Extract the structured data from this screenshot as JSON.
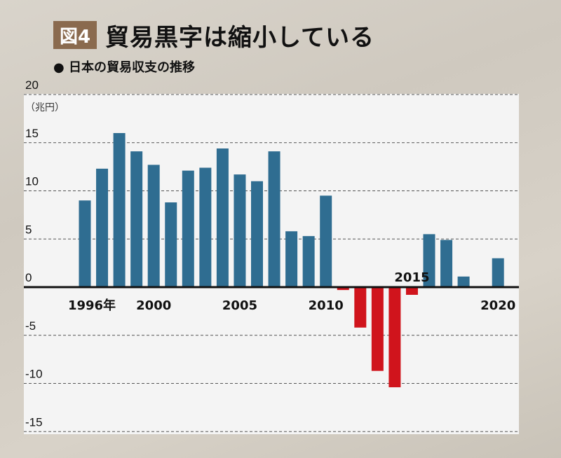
{
  "header": {
    "badge": "図4",
    "title": "貿易黒字は縮小している",
    "subtitle": "● 日本の貿易収支の推移"
  },
  "chart_data": {
    "type": "bar",
    "ylabel": "（兆円）",
    "ylim": [
      -15,
      20
    ],
    "yticks": [
      20,
      15,
      10,
      5,
      0,
      -5,
      -10,
      -15
    ],
    "grid": true,
    "x_tick_labels": [
      {
        "year": 1996,
        "label": "1996年"
      },
      {
        "year": 2000,
        "label": "2000"
      },
      {
        "year": 2005,
        "label": "2005"
      },
      {
        "year": 2010,
        "label": "2010"
      },
      {
        "year": 2015,
        "label": "2015"
      },
      {
        "year": 2020,
        "label": "2020"
      }
    ],
    "x": [
      1996,
      1997,
      1998,
      1999,
      2000,
      2001,
      2002,
      2003,
      2004,
      2005,
      2006,
      2007,
      2008,
      2009,
      2010,
      2011,
      2012,
      2013,
      2014,
      2015,
      2016,
      2017,
      2018,
      2019,
      2020
    ],
    "values": [
      9.0,
      12.3,
      16.0,
      14.1,
      12.7,
      8.8,
      12.1,
      12.4,
      14.4,
      11.7,
      11.0,
      14.1,
      5.8,
      5.3,
      9.5,
      -0.3,
      -4.2,
      -8.7,
      -10.4,
      -0.8,
      5.5,
      4.9,
      1.1,
      0.0,
      3.0
    ],
    "colors": {
      "positive": "#2f6d91",
      "negative": "#d0141c"
    }
  }
}
